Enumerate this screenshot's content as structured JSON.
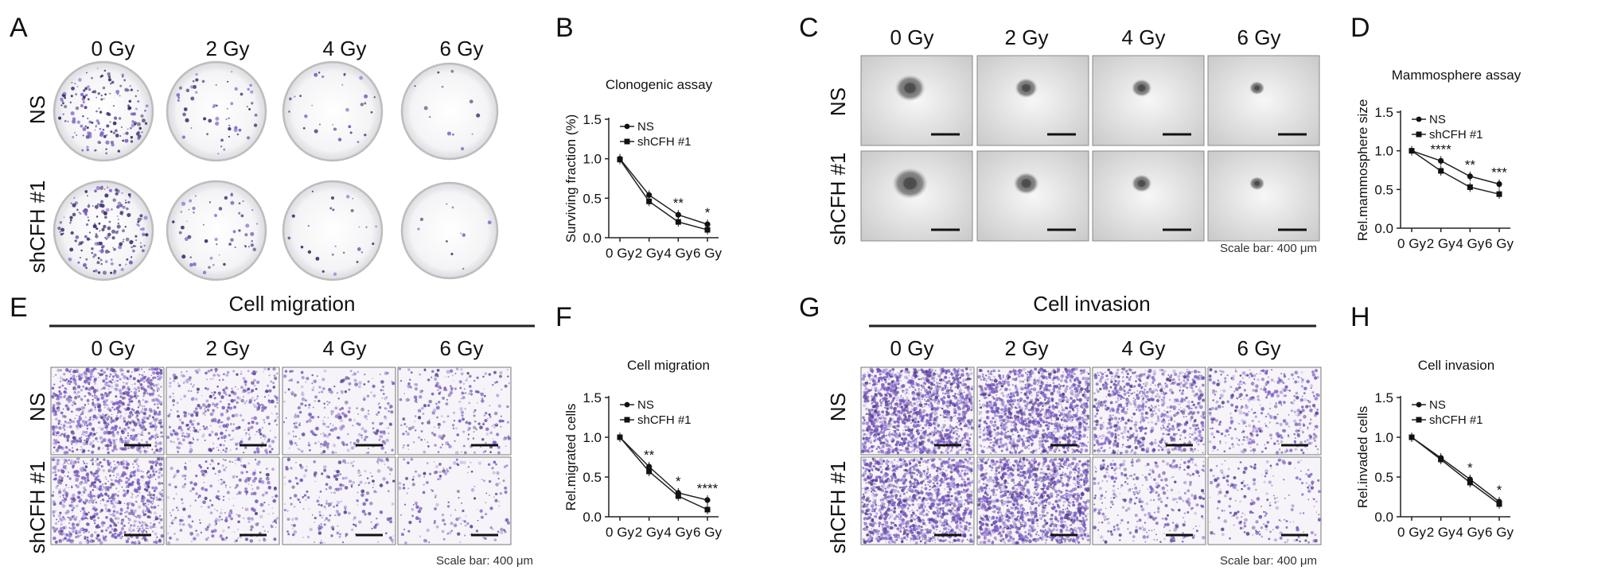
{
  "panel_letters": {
    "A": "A",
    "B": "B",
    "C": "C",
    "D": "D",
    "E": "E",
    "F": "F",
    "G": "G",
    "H": "H"
  },
  "doses": [
    "0 Gy",
    "2 Gy",
    "4 Gy",
    "6 Gy"
  ],
  "groups": [
    "NS",
    "shCFH #1"
  ],
  "scale_bar_text": "Scale bar: 400 μm",
  "section_titles": {
    "E": "Cell migration",
    "G": "Cell invasion"
  },
  "colors": {
    "line": "#222222",
    "dish_border": "#bdbdbd",
    "colony": "#3d2f6b",
    "crystal_violet": "#7d5cc7"
  },
  "chart_data": [
    {
      "panel": "B",
      "type": "line",
      "title": "Clonogenic assay",
      "xlabel": "",
      "ylabel": "Surviving fraction (%)",
      "categories": [
        "0 Gy",
        "2 Gy",
        "4 Gy",
        "6 Gy"
      ],
      "ylim": [
        0,
        1.5
      ],
      "yticks": [
        "0.0",
        "0.5",
        "1.0",
        "1.5"
      ],
      "series": [
        {
          "name": "NS",
          "values": [
            1.0,
            0.54,
            0.29,
            0.17
          ]
        },
        {
          "name": "shCFH #1",
          "values": [
            0.99,
            0.46,
            0.2,
            0.1
          ]
        }
      ],
      "significance": [
        "",
        "",
        "**",
        "*"
      ],
      "legend": "top-right"
    },
    {
      "panel": "D",
      "type": "line",
      "title": "Mammosphere assay",
      "xlabel": "",
      "ylabel": "Rel.mammosphere size",
      "categories": [
        "0 Gy",
        "2 Gy",
        "4 Gy",
        "6 Gy"
      ],
      "ylim": [
        0,
        1.5
      ],
      "yticks": [
        "0.0",
        "0.5",
        "1.0",
        "1.5"
      ],
      "series": [
        {
          "name": "NS",
          "values": [
            1.0,
            0.87,
            0.67,
            0.57
          ]
        },
        {
          "name": "shCFH #1",
          "values": [
            1.0,
            0.74,
            0.53,
            0.44
          ]
        }
      ],
      "significance": [
        "",
        "****",
        "**",
        "***"
      ],
      "legend": "top-right"
    },
    {
      "panel": "F",
      "type": "line",
      "title": "Cell migration",
      "xlabel": "",
      "ylabel": "Rel.migrated cells",
      "categories": [
        "0 Gy",
        "2 Gy",
        "4 Gy",
        "6 Gy"
      ],
      "ylim": [
        0,
        1.5
      ],
      "yticks": [
        "0.0",
        "0.5",
        "1.0",
        "1.5"
      ],
      "series": [
        {
          "name": "NS",
          "values": [
            1.0,
            0.63,
            0.3,
            0.21
          ]
        },
        {
          "name": "shCFH #1",
          "values": [
            1.0,
            0.57,
            0.26,
            0.09
          ]
        }
      ],
      "significance": [
        "",
        "**",
        "*",
        "****"
      ],
      "legend": "top-right"
    },
    {
      "panel": "H",
      "type": "line",
      "title": "Cell invasion",
      "xlabel": "",
      "ylabel": "Rel.invaded cells",
      "categories": [
        "0 Gy",
        "2 Gy",
        "4 Gy",
        "6 Gy"
      ],
      "ylim": [
        0,
        1.5
      ],
      "yticks": [
        "0.0",
        "0.5",
        "1.0",
        "1.5"
      ],
      "series": [
        {
          "name": "NS",
          "values": [
            1.0,
            0.74,
            0.47,
            0.19
          ]
        },
        {
          "name": "shCFH #1",
          "values": [
            1.0,
            0.72,
            0.43,
            0.16
          ]
        }
      ],
      "significance": [
        "",
        "",
        "*",
        "*"
      ],
      "legend": "top-right"
    }
  ]
}
